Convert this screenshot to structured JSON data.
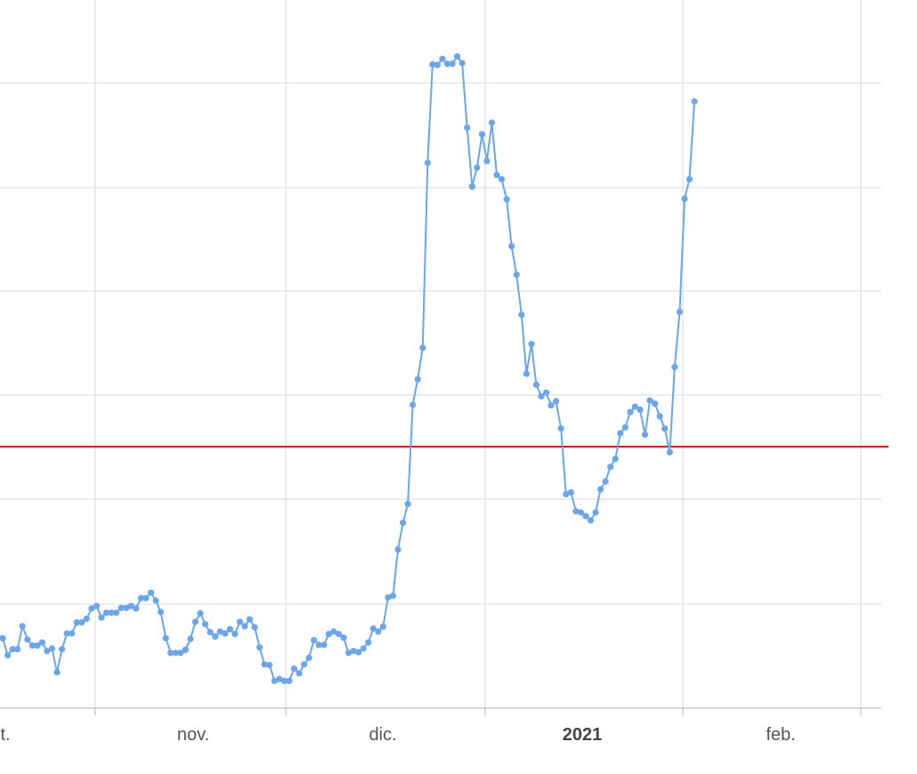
{
  "chart_data": {
    "type": "line",
    "title": "",
    "xlabel": "",
    "ylabel": "",
    "grid": true,
    "legend": "none",
    "x_tick_labels": [
      {
        "text": "t.",
        "bold": false
      },
      {
        "text": "nov.",
        "bold": false
      },
      {
        "text": "dic.",
        "bold": false
      },
      {
        "text": "2021",
        "bold": true
      },
      {
        "text": "feb.",
        "bold": false
      }
    ],
    "xlim": [
      0,
      180
    ],
    "ylim": [
      0,
      12
    ],
    "reference_line": {
      "value": 5,
      "color": "#dd0000"
    },
    "series": [
      {
        "color": "#6aa6f0",
        "values": [
          1.15,
          0.87,
          0.97,
          0.97,
          1.35,
          1.13,
          1.03,
          1.03,
          1.08,
          0.94,
          0.98,
          0.59,
          0.97,
          1.23,
          1.23,
          1.41,
          1.41,
          1.47,
          1.64,
          1.68,
          1.49,
          1.57,
          1.57,
          1.57,
          1.65,
          1.65,
          1.68,
          1.64,
          1.81,
          1.81,
          1.9,
          1.77,
          1.58,
          1.15,
          0.91,
          0.91,
          0.91,
          0.96,
          1.14,
          1.42,
          1.56,
          1.38,
          1.25,
          1.18,
          1.26,
          1.23,
          1.3,
          1.22,
          1.42,
          1.35,
          1.46,
          1.33,
          1.0,
          0.72,
          0.71,
          0.45,
          0.48,
          0.45,
          0.45,
          0.65,
          0.57,
          0.72,
          0.83,
          1.12,
          1.04,
          1.04,
          1.22,
          1.26,
          1.22,
          1.16,
          0.91,
          0.94,
          0.92,
          0.98,
          1.08,
          1.31,
          1.26,
          1.34,
          1.82,
          1.85,
          2.61,
          3.05,
          3.36,
          4.99,
          5.41,
          5.93,
          8.97,
          10.59,
          10.58,
          10.68,
          10.6,
          10.6,
          10.72,
          10.61,
          9.55,
          8.58,
          8.89,
          9.44,
          9.0,
          9.63,
          8.77,
          8.7,
          8.37,
          7.6,
          7.13,
          6.47,
          5.5,
          5.99,
          5.32,
          5.13,
          5.19,
          4.98,
          5.05,
          4.6,
          3.52,
          3.55,
          3.24,
          3.22,
          3.16,
          3.09,
          3.22,
          3.6,
          3.73,
          3.97,
          4.1,
          4.52,
          4.62,
          4.87,
          4.96,
          4.91,
          4.5,
          5.06,
          5.01,
          4.8,
          4.6,
          4.21,
          5.61,
          6.52,
          8.38,
          8.7,
          9.98
        ]
      }
    ]
  }
}
